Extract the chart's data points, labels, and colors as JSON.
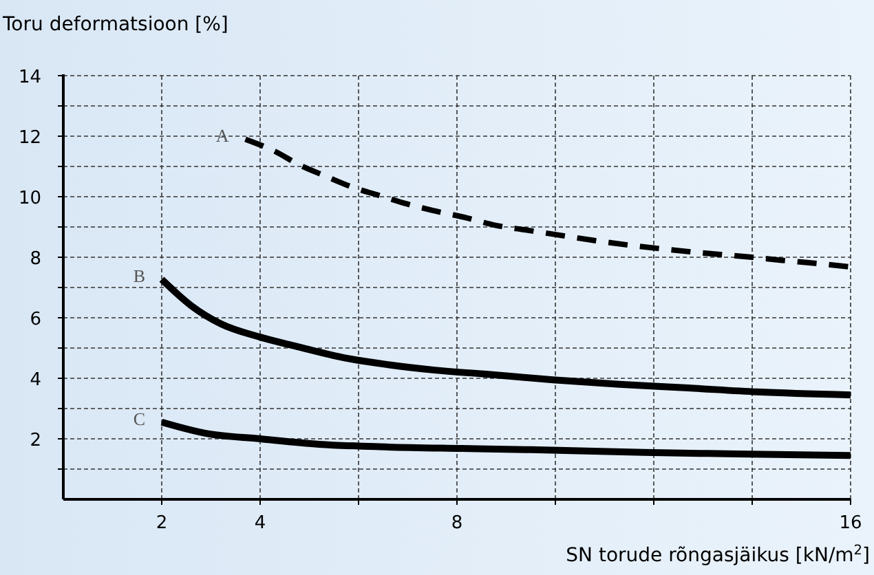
{
  "chart_data": {
    "type": "line",
    "ylabel": "Toru deformatsioon [%]",
    "xlabel": "SN torude rõngasjäikus [kN/m$^{2}$]",
    "xlim": [
      0,
      16
    ],
    "xticks": [
      2,
      4,
      {
        "value": 6,
        "label": null
      },
      8,
      {
        "value": 10,
        "label": null
      },
      {
        "value": 12,
        "label": null
      },
      {
        "value": 14,
        "label": null
      },
      16
    ],
    "ylim": [
      0,
      14
    ],
    "yticks": [
      {
        "value": 1,
        "label": null
      },
      2,
      {
        "value": 3,
        "label": null
      },
      4,
      {
        "value": 5,
        "label": null
      },
      6,
      {
        "value": 7,
        "label": null
      },
      8,
      {
        "value": 9,
        "label": null
      },
      10,
      {
        "value": 11,
        "label": null
      },
      12,
      {
        "value": 13,
        "label": null
      },
      14
    ],
    "grid": true,
    "series": [
      {
        "name": "A",
        "color": "#000000",
        "line_style": "dashed",
        "x": [
          3.7,
          4.3,
          4.8,
          5.3,
          5.9,
          6.4,
          6.9,
          7.5,
          8.2,
          8.8,
          9.4,
          10.2,
          10.8,
          11.5,
          12.2,
          12.8,
          14,
          14.6,
          15.4,
          16
        ],
        "values": [
          11.9,
          11.5,
          11.05,
          10.7,
          10.3,
          10.05,
          9.8,
          9.55,
          9.3,
          9.05,
          8.9,
          8.7,
          8.55,
          8.4,
          8.27,
          8.17,
          8,
          7.9,
          7.78,
          7.68
        ]
      },
      {
        "name": "B",
        "color": "#000000",
        "line_style": "solid",
        "x": [
          2,
          2.6,
          3.2,
          4,
          4.75,
          5.7,
          6.6,
          7.55,
          8.55,
          9.95,
          11.3,
          12.7,
          14.1,
          16
        ],
        "values": [
          7.27,
          6.4,
          5.8,
          5.36,
          5.05,
          4.68,
          4.45,
          4.27,
          4.14,
          3.95,
          3.8,
          3.68,
          3.55,
          3.45
        ]
      },
      {
        "name": "C",
        "color": "#000000",
        "line_style": "solid",
        "x": [
          2,
          2.9,
          4,
          5.2,
          6.6,
          8.1,
          9.5,
          11.8,
          13.7,
          16
        ],
        "values": [
          2.55,
          2.18,
          2,
          1.82,
          1.73,
          1.68,
          1.64,
          1.55,
          1.5,
          1.45
        ]
      }
    ]
  }
}
